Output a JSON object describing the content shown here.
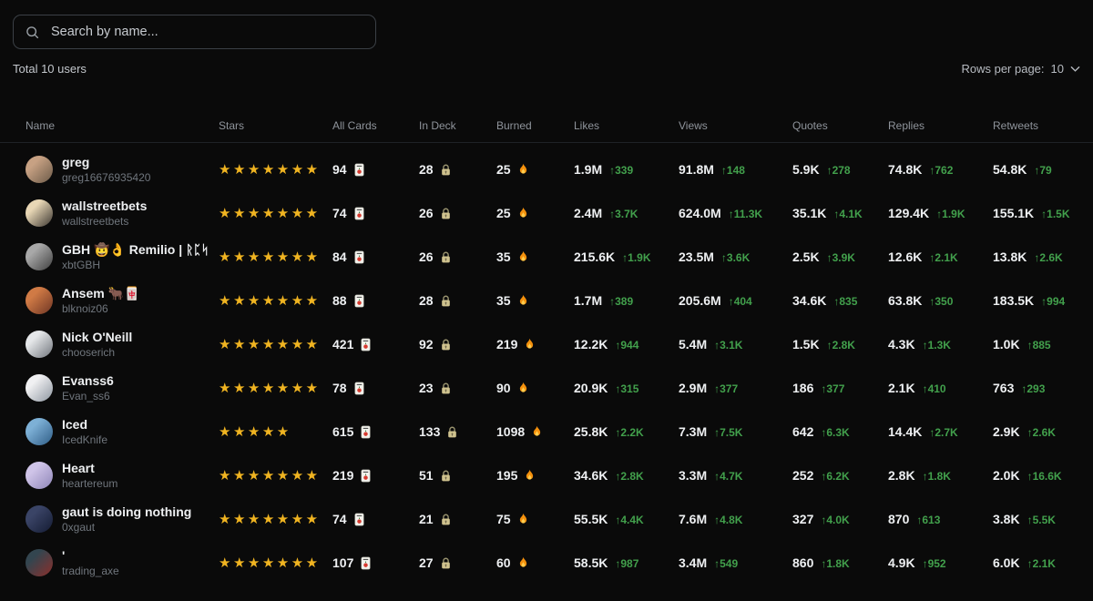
{
  "search": {
    "placeholder": "Search by name...",
    "icon": "search-icon"
  },
  "summary": {
    "total_label": "Total 10 users"
  },
  "pagination": {
    "rows_per_page_label": "Rows per page:",
    "rows_per_page_value": "10"
  },
  "colors": {
    "background": "#0a0a0a",
    "star": "#f0b421",
    "delta_green": "#42a04c",
    "value_text": "#eef0f2",
    "muted_text": "#8f949b"
  },
  "table": {
    "columns": [
      {
        "key": "name",
        "label": "Name"
      },
      {
        "key": "stars",
        "label": "Stars"
      },
      {
        "key": "all_cards",
        "label": "All Cards",
        "icon": "card-icon"
      },
      {
        "key": "in_deck",
        "label": "In Deck",
        "icon": "lock-icon"
      },
      {
        "key": "burned",
        "label": "Burned",
        "icon": "fire-icon"
      },
      {
        "key": "likes",
        "label": "Likes"
      },
      {
        "key": "views",
        "label": "Views"
      },
      {
        "key": "quotes",
        "label": "Quotes"
      },
      {
        "key": "replies",
        "label": "Replies"
      },
      {
        "key": "retweets",
        "label": "Retweets"
      }
    ],
    "users": [
      {
        "name": "greg",
        "handle": "greg16676935420",
        "stars": 7,
        "avatar_colors": [
          "#c7a183",
          "#6b5a48"
        ],
        "all_cards": "94",
        "in_deck": "28",
        "burned": "25",
        "likes": {
          "value": "1.9M",
          "delta": "↑339"
        },
        "views": {
          "value": "91.8M",
          "delta": "↑148"
        },
        "quotes": {
          "value": "5.9K",
          "delta": "↑278"
        },
        "replies": {
          "value": "74.8K",
          "delta": "↑762"
        },
        "retweets": {
          "value": "54.8K",
          "delta": "↑79"
        }
      },
      {
        "name": "wallstreetbets",
        "handle": "wallstreetbets",
        "stars": 7,
        "avatar_colors": [
          "#e8d7b5",
          "#3a3530"
        ],
        "all_cards": "74",
        "in_deck": "26",
        "burned": "25",
        "likes": {
          "value": "2.4M",
          "delta": "↑3.7K"
        },
        "views": {
          "value": "624.0M",
          "delta": "↑11.3K"
        },
        "quotes": {
          "value": "35.1K",
          "delta": "↑4.1K"
        },
        "replies": {
          "value": "129.4K",
          "delta": "↑1.9K"
        },
        "retweets": {
          "value": "155.1K",
          "delta": "↑1.5K"
        }
      },
      {
        "name": "GBH 🤠👌 Remilio | ᚱᛈᛋ",
        "handle": "xbtGBH",
        "stars": 7,
        "avatar_colors": [
          "#a8a8a8",
          "#3f3f3f"
        ],
        "all_cards": "84",
        "in_deck": "26",
        "burned": "35",
        "likes": {
          "value": "215.6K",
          "delta": "↑1.9K"
        },
        "views": {
          "value": "23.5M",
          "delta": "↑3.6K"
        },
        "quotes": {
          "value": "2.5K",
          "delta": "↑3.9K"
        },
        "replies": {
          "value": "12.6K",
          "delta": "↑2.1K"
        },
        "retweets": {
          "value": "13.8K",
          "delta": "↑2.6K"
        }
      },
      {
        "name": "Ansem 🐂🀄",
        "handle": "blknoiz06",
        "stars": 7,
        "avatar_colors": [
          "#d07a45",
          "#6e3524"
        ],
        "all_cards": "88",
        "in_deck": "28",
        "burned": "35",
        "likes": {
          "value": "1.7M",
          "delta": "↑389"
        },
        "views": {
          "value": "205.6M",
          "delta": "↑404"
        },
        "quotes": {
          "value": "34.6K",
          "delta": "↑835"
        },
        "replies": {
          "value": "63.8K",
          "delta": "↑350"
        },
        "retweets": {
          "value": "183.5K",
          "delta": "↑994"
        }
      },
      {
        "name": "Nick O'Neill",
        "handle": "chooserich",
        "stars": 7,
        "avatar_colors": [
          "#e5e7e9",
          "#70757c"
        ],
        "all_cards": "421",
        "in_deck": "92",
        "burned": "219",
        "likes": {
          "value": "12.2K",
          "delta": "↑944"
        },
        "views": {
          "value": "5.4M",
          "delta": "↑3.1K"
        },
        "quotes": {
          "value": "1.5K",
          "delta": "↑2.8K"
        },
        "replies": {
          "value": "4.3K",
          "delta": "↑1.3K"
        },
        "retweets": {
          "value": "1.0K",
          "delta": "↑885"
        }
      },
      {
        "name": "Evanss6",
        "handle": "Evan_ss6",
        "stars": 7,
        "avatar_colors": [
          "#f0f0f2",
          "#8e96a0"
        ],
        "all_cards": "78",
        "in_deck": "23",
        "burned": "90",
        "likes": {
          "value": "20.9K",
          "delta": "↑315"
        },
        "views": {
          "value": "2.9M",
          "delta": "↑377"
        },
        "quotes": {
          "value": "186",
          "delta": "↑377"
        },
        "replies": {
          "value": "2.1K",
          "delta": "↑410"
        },
        "retweets": {
          "value": "763",
          "delta": "↑293"
        }
      },
      {
        "name": "Iced",
        "handle": "IcedKnife",
        "stars": 5,
        "avatar_colors": [
          "#7db0d6",
          "#2f5d86"
        ],
        "all_cards": "615",
        "in_deck": "133",
        "burned": "1098",
        "likes": {
          "value": "25.8K",
          "delta": "↑2.2K"
        },
        "views": {
          "value": "7.3M",
          "delta": "↑7.5K"
        },
        "quotes": {
          "value": "642",
          "delta": "↑6.3K"
        },
        "replies": {
          "value": "14.4K",
          "delta": "↑2.7K"
        },
        "retweets": {
          "value": "2.9K",
          "delta": "↑2.6K"
        }
      },
      {
        "name": "Heart",
        "handle": "heartereum",
        "stars": 7,
        "avatar_colors": [
          "#cfc4e8",
          "#8f86b8"
        ],
        "all_cards": "219",
        "in_deck": "51",
        "burned": "195",
        "likes": {
          "value": "34.6K",
          "delta": "↑2.8K"
        },
        "views": {
          "value": "3.3M",
          "delta": "↑4.7K"
        },
        "quotes": {
          "value": "252",
          "delta": "↑6.2K"
        },
        "replies": {
          "value": "2.8K",
          "delta": "↑1.8K"
        },
        "retweets": {
          "value": "2.0K",
          "delta": "↑16.6K"
        }
      },
      {
        "name": "gaut is doing nothing",
        "handle": "0xgaut",
        "stars": 7,
        "avatar_colors": [
          "#3a4466",
          "#141b33"
        ],
        "all_cards": "74",
        "in_deck": "21",
        "burned": "75",
        "likes": {
          "value": "55.5K",
          "delta": "↑4.4K"
        },
        "views": {
          "value": "7.6M",
          "delta": "↑4.8K"
        },
        "quotes": {
          "value": "327",
          "delta": "↑4.0K"
        },
        "replies": {
          "value": "870",
          "delta": "↑613"
        },
        "retweets": {
          "value": "3.8K",
          "delta": "↑5.5K"
        }
      },
      {
        "name": "'",
        "handle": "trading_axe",
        "stars": 7,
        "avatar_colors": [
          "#33454f",
          "#8c2f2b"
        ],
        "all_cards": "107",
        "in_deck": "27",
        "burned": "60",
        "likes": {
          "value": "58.5K",
          "delta": "↑987"
        },
        "views": {
          "value": "3.4M",
          "delta": "↑549"
        },
        "quotes": {
          "value": "860",
          "delta": "↑1.8K"
        },
        "replies": {
          "value": "4.9K",
          "delta": "↑952"
        },
        "retweets": {
          "value": "6.0K",
          "delta": "↑2.1K"
        }
      }
    ]
  }
}
